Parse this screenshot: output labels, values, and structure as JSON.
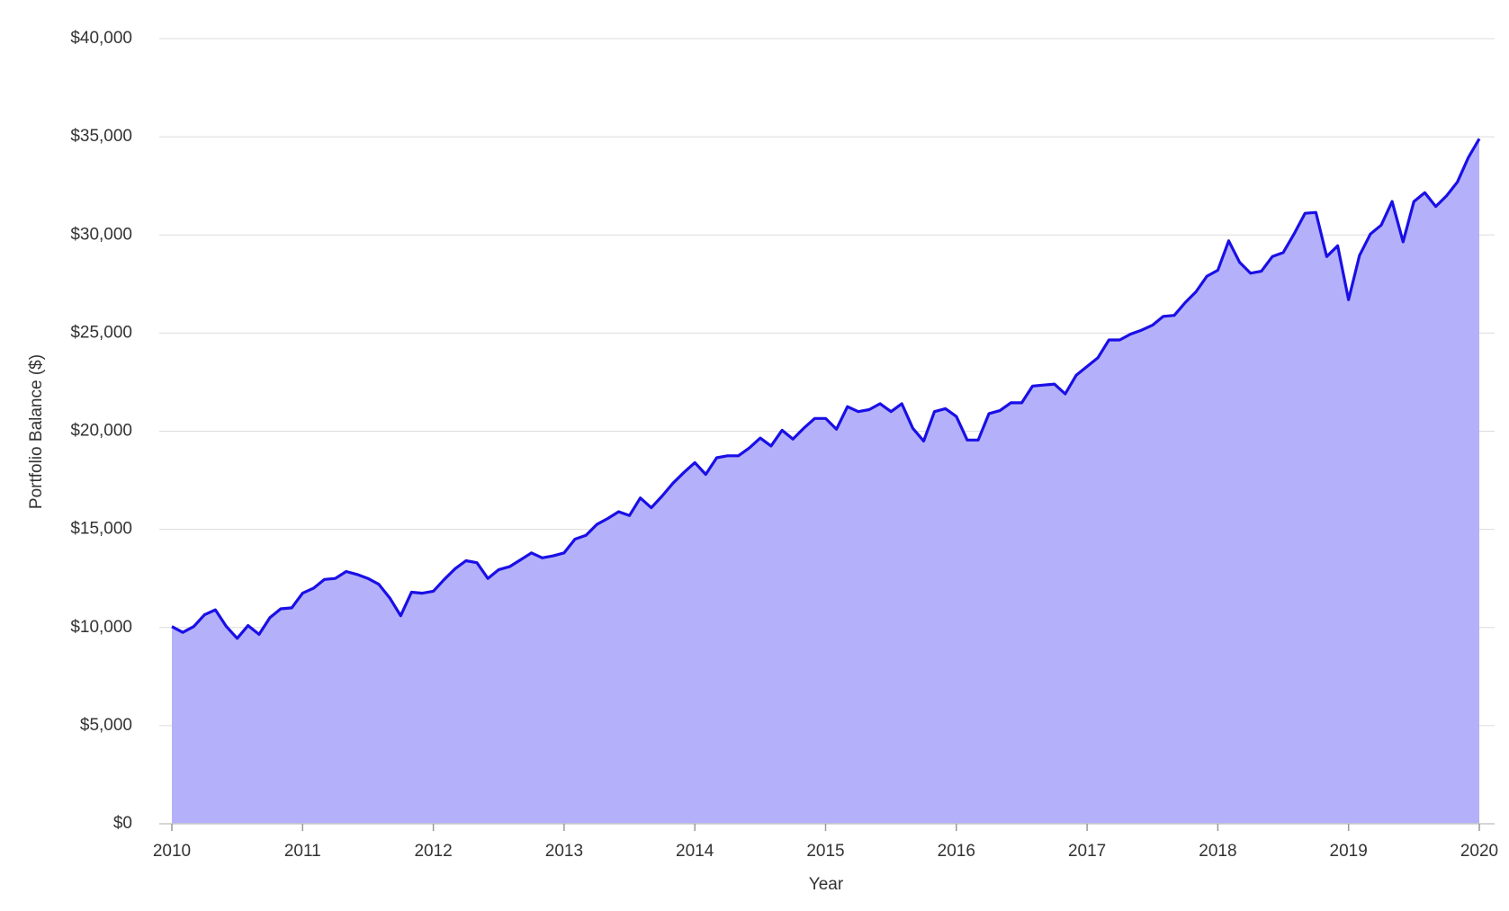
{
  "chart_data": {
    "type": "area",
    "x_label": "Year",
    "y_label": "Portfolio Balance ($)",
    "x": [
      2010,
      2010.083,
      2010.167,
      2010.25,
      2010.333,
      2010.417,
      2010.5,
      2010.583,
      2010.667,
      2010.75,
      2010.833,
      2010.917,
      2011,
      2011.083,
      2011.167,
      2011.25,
      2011.333,
      2011.417,
      2011.5,
      2011.583,
      2011.667,
      2011.75,
      2011.833,
      2011.917,
      2012,
      2012.083,
      2012.167,
      2012.25,
      2012.333,
      2012.417,
      2012.5,
      2012.583,
      2012.667,
      2012.75,
      2012.833,
      2012.917,
      2013,
      2013.083,
      2013.167,
      2013.25,
      2013.333,
      2013.417,
      2013.5,
      2013.583,
      2013.667,
      2013.75,
      2013.833,
      2013.917,
      2014,
      2014.083,
      2014.167,
      2014.25,
      2014.333,
      2014.417,
      2014.5,
      2014.583,
      2014.667,
      2014.75,
      2014.833,
      2014.917,
      2015,
      2015.083,
      2015.167,
      2015.25,
      2015.333,
      2015.417,
      2015.5,
      2015.583,
      2015.667,
      2015.75,
      2015.833,
      2015.917,
      2016,
      2016.083,
      2016.167,
      2016.25,
      2016.333,
      2016.417,
      2016.5,
      2016.583,
      2016.667,
      2016.75,
      2016.833,
      2016.917,
      2017,
      2017.083,
      2017.167,
      2017.25,
      2017.333,
      2017.417,
      2017.5,
      2017.583,
      2017.667,
      2017.75,
      2017.833,
      2017.917,
      2018,
      2018.083,
      2018.167,
      2018.25,
      2018.333,
      2018.417,
      2018.5,
      2018.583,
      2018.667,
      2018.75,
      2018.833,
      2018.917,
      2019,
      2019.083,
      2019.167,
      2019.25,
      2019.333,
      2019.417,
      2019.5,
      2019.583,
      2019.667,
      2019.75,
      2019.833,
      2019.917,
      2020
    ],
    "values": [
      10050,
      9750,
      10050,
      10650,
      10900,
      10050,
      9450,
      10100,
      9650,
      10500,
      10950,
      11000,
      11750,
      12000,
      12450,
      12500,
      12850,
      12700,
      12500,
      12200,
      11500,
      10600,
      11800,
      11750,
      11850,
      12450,
      13000,
      13400,
      13300,
      12500,
      12950,
      13100,
      13450,
      13800,
      13550,
      13650,
      13800,
      14500,
      14700,
      15250,
      15550,
      15900,
      15700,
      16600,
      16100,
      16700,
      17350,
      17900,
      18400,
      17800,
      18650,
      18750,
      18750,
      19150,
      19650,
      19250,
      20050,
      19600,
      20150,
      20650,
      20650,
      20100,
      21250,
      21000,
      21100,
      21400,
      21000,
      21400,
      20150,
      19500,
      21000,
      21150,
      20750,
      19550,
      19550,
      20900,
      21050,
      21450,
      21450,
      22300,
      22350,
      22400,
      21900,
      22850,
      23300,
      23750,
      24650,
      24650,
      24950,
      25150,
      25400,
      25850,
      25900,
      26550,
      27100,
      27900,
      28200,
      29700,
      28600,
      28050,
      28150,
      28900,
      29100,
      30050,
      31100,
      31150,
      28900,
      29450,
      26700,
      28950,
      30050,
      30500,
      31700,
      29650,
      31700,
      32150,
      31450,
      32000,
      32700,
      33950,
      34900
    ],
    "color": "#1a0fe6",
    "fill_color": "#b4b1fa",
    "xlim": [
      2010,
      2020
    ],
    "xticks": [
      2010,
      2011,
      2012,
      2013,
      2014,
      2015,
      2016,
      2017,
      2018,
      2019,
      2020
    ],
    "ylim": [
      0,
      40000
    ],
    "yticks": [
      {
        "value": 0,
        "label": "$0"
      },
      {
        "value": 5000,
        "label": "$5,000"
      },
      {
        "value": 10000,
        "label": "$10,000"
      },
      {
        "value": 15000,
        "label": "$15,000"
      },
      {
        "value": 20000,
        "label": "$20,000"
      },
      {
        "value": 25000,
        "label": "$25,000"
      },
      {
        "value": 30000,
        "label": "$30,000"
      },
      {
        "value": 35000,
        "label": "$35,000"
      },
      {
        "value": 40000,
        "label": "$40,000"
      }
    ],
    "grid": true
  }
}
